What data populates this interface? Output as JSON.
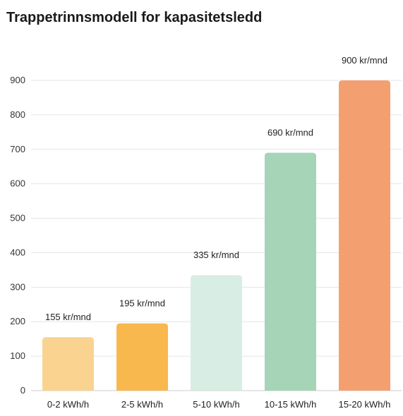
{
  "chart_data": {
    "type": "bar",
    "title": "Trappetrinnsmodell for kapasitetsledd",
    "categories": [
      "0-2 kWh/h",
      "2-5 kWh/h",
      "5-10 kWh/h",
      "10-15 kWh/h",
      "15-20 kWh/h"
    ],
    "values": [
      155,
      195,
      335,
      690,
      900
    ],
    "data_labels": [
      "155 kr/mnd",
      "195 kr/mnd",
      "335 kr/mnd",
      "690 kr/mnd",
      "900 kr/mnd"
    ],
    "colors": [
      "#fad391",
      "#f8b84e",
      "#d8ede3",
      "#a6d4b7",
      "#f49f70"
    ],
    "yticks": [
      "0",
      "100",
      "200",
      "300",
      "400",
      "500",
      "600",
      "700",
      "800",
      "900"
    ],
    "ylim": [
      0,
      900
    ],
    "grid": true,
    "legend": "none"
  }
}
